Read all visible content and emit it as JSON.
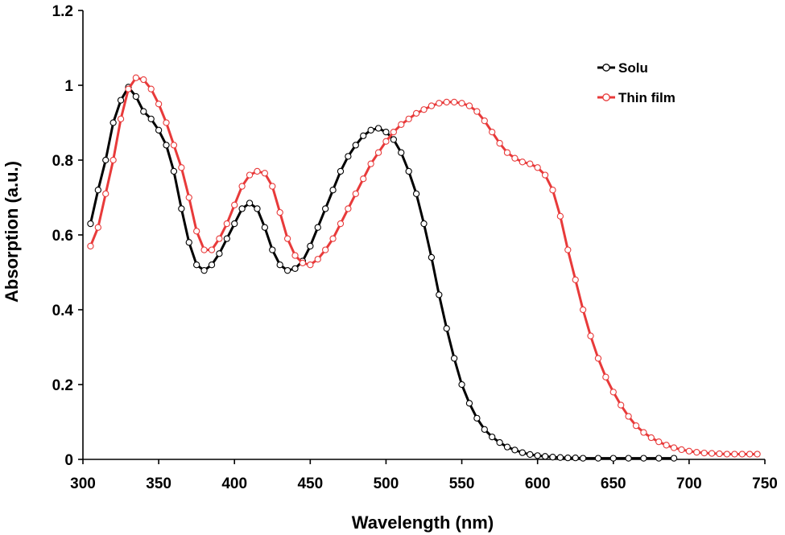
{
  "chart_data": {
    "type": "line",
    "xlabel": "Wavelength (nm)",
    "ylabel": "Absorption (a.u.)",
    "xlim": [
      300,
      750
    ],
    "ylim": [
      0,
      1.2
    ],
    "x_ticks": [
      300,
      350,
      400,
      450,
      500,
      550,
      600,
      650,
      700,
      750
    ],
    "x_tick_labels": [
      "300",
      "350",
      "400",
      "450",
      "500",
      "550",
      "600",
      "650",
      "700",
      "750"
    ],
    "y_ticks": [
      0,
      0.2,
      0.4,
      0.6,
      0.8,
      1.0,
      1.2
    ],
    "y_tick_labels": [
      "0",
      "0.2",
      "0.4",
      "0.6",
      "0.8",
      "1",
      "1.2"
    ],
    "grid": false,
    "legend_position": "top-right",
    "markers": "open-circle",
    "series": [
      {
        "name": "Solu",
        "color": "#000000",
        "points": [
          [
            305,
            0.63
          ],
          [
            310,
            0.72
          ],
          [
            315,
            0.8
          ],
          [
            320,
            0.9
          ],
          [
            325,
            0.96
          ],
          [
            330,
            0.995
          ],
          [
            335,
            0.97
          ],
          [
            340,
            0.93
          ],
          [
            345,
            0.91
          ],
          [
            350,
            0.88
          ],
          [
            355,
            0.84
          ],
          [
            360,
            0.77
          ],
          [
            365,
            0.67
          ],
          [
            370,
            0.58
          ],
          [
            375,
            0.52
          ],
          [
            380,
            0.505
          ],
          [
            385,
            0.52
          ],
          [
            390,
            0.55
          ],
          [
            395,
            0.59
          ],
          [
            400,
            0.63
          ],
          [
            405,
            0.67
          ],
          [
            410,
            0.685
          ],
          [
            415,
            0.67
          ],
          [
            420,
            0.62
          ],
          [
            425,
            0.56
          ],
          [
            430,
            0.52
          ],
          [
            435,
            0.505
          ],
          [
            440,
            0.51
          ],
          [
            445,
            0.53
          ],
          [
            450,
            0.57
          ],
          [
            455,
            0.62
          ],
          [
            460,
            0.67
          ],
          [
            465,
            0.72
          ],
          [
            470,
            0.77
          ],
          [
            475,
            0.81
          ],
          [
            480,
            0.84
          ],
          [
            485,
            0.865
          ],
          [
            490,
            0.88
          ],
          [
            495,
            0.885
          ],
          [
            500,
            0.875
          ],
          [
            505,
            0.855
          ],
          [
            510,
            0.82
          ],
          [
            515,
            0.77
          ],
          [
            520,
            0.71
          ],
          [
            525,
            0.63
          ],
          [
            530,
            0.54
          ],
          [
            535,
            0.44
          ],
          [
            540,
            0.35
          ],
          [
            545,
            0.27
          ],
          [
            550,
            0.2
          ],
          [
            555,
            0.15
          ],
          [
            560,
            0.11
          ],
          [
            565,
            0.08
          ],
          [
            570,
            0.06
          ],
          [
            575,
            0.045
          ],
          [
            580,
            0.033
          ],
          [
            585,
            0.025
          ],
          [
            590,
            0.018
          ],
          [
            595,
            0.013
          ],
          [
            600,
            0.01
          ],
          [
            605,
            0.008
          ],
          [
            610,
            0.006
          ],
          [
            615,
            0.005
          ],
          [
            620,
            0.004
          ],
          [
            625,
            0.004
          ],
          [
            630,
            0.003
          ],
          [
            640,
            0.003
          ],
          [
            650,
            0.003
          ],
          [
            660,
            0.003
          ],
          [
            670,
            0.003
          ],
          [
            680,
            0.003
          ],
          [
            690,
            0.003
          ]
        ]
      },
      {
        "name": "Thin film",
        "color": "#e83a3a",
        "points": [
          [
            305,
            0.57
          ],
          [
            310,
            0.62
          ],
          [
            315,
            0.71
          ],
          [
            320,
            0.8
          ],
          [
            325,
            0.91
          ],
          [
            330,
            0.99
          ],
          [
            335,
            1.02
          ],
          [
            340,
            1.015
          ],
          [
            345,
            0.99
          ],
          [
            350,
            0.95
          ],
          [
            355,
            0.9
          ],
          [
            360,
            0.84
          ],
          [
            365,
            0.78
          ],
          [
            370,
            0.7
          ],
          [
            375,
            0.61
          ],
          [
            380,
            0.56
          ],
          [
            385,
            0.56
          ],
          [
            390,
            0.59
          ],
          [
            395,
            0.63
          ],
          [
            400,
            0.68
          ],
          [
            405,
            0.73
          ],
          [
            410,
            0.76
          ],
          [
            415,
            0.77
          ],
          [
            420,
            0.765
          ],
          [
            425,
            0.73
          ],
          [
            430,
            0.66
          ],
          [
            435,
            0.59
          ],
          [
            440,
            0.545
          ],
          [
            445,
            0.525
          ],
          [
            450,
            0.52
          ],
          [
            455,
            0.535
          ],
          [
            460,
            0.56
          ],
          [
            465,
            0.59
          ],
          [
            470,
            0.63
          ],
          [
            475,
            0.67
          ],
          [
            480,
            0.71
          ],
          [
            485,
            0.75
          ],
          [
            490,
            0.79
          ],
          [
            495,
            0.82
          ],
          [
            500,
            0.85
          ],
          [
            505,
            0.875
          ],
          [
            510,
            0.895
          ],
          [
            515,
            0.91
          ],
          [
            520,
            0.925
          ],
          [
            525,
            0.935
          ],
          [
            530,
            0.945
          ],
          [
            535,
            0.952
          ],
          [
            540,
            0.955
          ],
          [
            545,
            0.955
          ],
          [
            550,
            0.952
          ],
          [
            555,
            0.945
          ],
          [
            560,
            0.93
          ],
          [
            565,
            0.905
          ],
          [
            570,
            0.875
          ],
          [
            575,
            0.845
          ],
          [
            580,
            0.82
          ],
          [
            585,
            0.805
          ],
          [
            590,
            0.795
          ],
          [
            595,
            0.79
          ],
          [
            600,
            0.78
          ],
          [
            605,
            0.76
          ],
          [
            610,
            0.72
          ],
          [
            615,
            0.65
          ],
          [
            620,
            0.56
          ],
          [
            625,
            0.48
          ],
          [
            630,
            0.4
          ],
          [
            635,
            0.33
          ],
          [
            640,
            0.27
          ],
          [
            645,
            0.22
          ],
          [
            650,
            0.18
          ],
          [
            655,
            0.145
          ],
          [
            660,
            0.115
          ],
          [
            665,
            0.09
          ],
          [
            670,
            0.072
          ],
          [
            675,
            0.058
          ],
          [
            680,
            0.047
          ],
          [
            685,
            0.038
          ],
          [
            690,
            0.031
          ],
          [
            695,
            0.026
          ],
          [
            700,
            0.022
          ],
          [
            705,
            0.019
          ],
          [
            710,
            0.017
          ],
          [
            715,
            0.016
          ],
          [
            720,
            0.015
          ],
          [
            725,
            0.014
          ],
          [
            730,
            0.014
          ],
          [
            735,
            0.014
          ],
          [
            740,
            0.014
          ],
          [
            745,
            0.014
          ]
        ]
      }
    ]
  }
}
